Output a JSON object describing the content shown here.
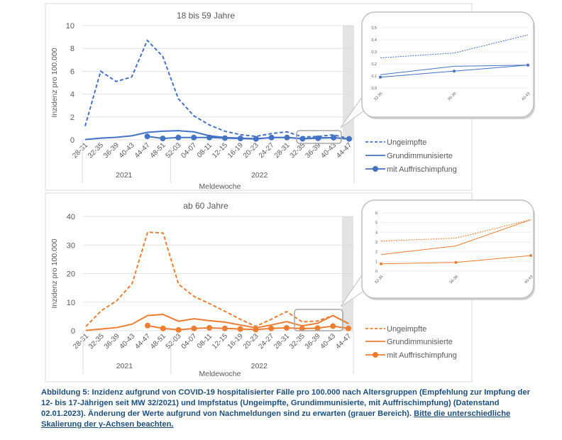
{
  "colors": {
    "blue": "#4472c4",
    "orange": "#ed7d31",
    "grid": "#d9d9d9",
    "axis": "#595959",
    "shade": "#e3e3e3"
  },
  "chart_data": [
    {
      "type": "line",
      "title": "18 bis 59 Jahre",
      "ylabel": "Inzidenz pro 100.000",
      "xlabel": "Meldewoche",
      "ylim": [
        0,
        10
      ],
      "yticks": [
        0,
        2,
        4,
        6,
        8,
        10
      ],
      "categories": [
        "28-31",
        "32-35",
        "36-39",
        "40-43",
        "44-47",
        "48-51",
        "52-03",
        "04-07",
        "08-11",
        "12-15",
        "16-19",
        "20-23",
        "24-27",
        "28-31",
        "32-35",
        "36-39",
        "40-43",
        "44-47"
      ],
      "years": [
        {
          "label": "2021",
          "from": 0,
          "to": 5
        },
        {
          "label": "2022",
          "from": 6,
          "to": 17
        }
      ],
      "series": [
        {
          "name": "Ungeimpfte",
          "style": "dashed",
          "values": [
            1.2,
            6.0,
            5.1,
            5.5,
            8.7,
            7.3,
            3.6,
            2.1,
            1.3,
            0.75,
            0.45,
            0.3,
            0.55,
            0.7,
            0.25,
            0.29,
            0.44,
            0.1
          ]
        },
        {
          "name": "Grundimmunisierte",
          "style": "solid",
          "values": [
            0.02,
            0.15,
            0.22,
            0.35,
            0.65,
            0.75,
            0.8,
            0.7,
            0.35,
            0.2,
            0.15,
            0.1,
            0.2,
            0.2,
            0.11,
            0.18,
            0.19,
            0.08
          ]
        },
        {
          "name": "mit Auffrischimpfung",
          "style": "marker",
          "values": [
            null,
            null,
            null,
            null,
            0.3,
            0.12,
            0.2,
            0.2,
            0.2,
            0.15,
            0.12,
            0.08,
            0.2,
            0.2,
            0.09,
            0.14,
            0.19,
            0.08
          ]
        }
      ],
      "inset": {
        "categories": [
          "32-35",
          "36-39",
          "40-43"
        ],
        "ylim": [
          0,
          0.5
        ],
        "yticks": [
          "0,0",
          "0,1",
          "0,2",
          "0,3",
          "0,4",
          "0,5"
        ],
        "series": [
          {
            "name": "Ungeimpfte",
            "values": [
              0.25,
              0.29,
              0.44
            ]
          },
          {
            "name": "Grundimmunisierte",
            "values": [
              0.11,
              0.18,
              0.19
            ]
          },
          {
            "name": "mit Auffrischimpfung",
            "values": [
              0.09,
              0.14,
              0.19
            ]
          }
        ]
      }
    },
    {
      "type": "line",
      "title": "ab 60 Jahre",
      "ylabel": "Inzidenz pro 100.000",
      "xlabel": "Meldewoche",
      "ylim": [
        0,
        40
      ],
      "yticks": [
        0,
        10,
        20,
        30,
        40
      ],
      "categories": [
        "28-31",
        "32-35",
        "36-39",
        "40-43",
        "44-47",
        "48-51",
        "52-03",
        "04-07",
        "08-11",
        "12-15",
        "16-19",
        "20-23",
        "24-27",
        "28-31",
        "32-35",
        "36-39",
        "40-43",
        "44-47"
      ],
      "years": [
        {
          "label": "2021",
          "from": 0,
          "to": 5
        },
        {
          "label": "2022",
          "from": 6,
          "to": 17
        }
      ],
      "series": [
        {
          "name": "Ungeimpfte",
          "style": "dashed",
          "values": [
            1.5,
            7,
            10.5,
            16.5,
            34.5,
            34.2,
            16.3,
            12,
            9.5,
            6.8,
            4,
            1.5,
            4,
            6.7,
            3.1,
            3.4,
            5.3,
            2.5
          ]
        },
        {
          "name": "Grundimmunisierte",
          "style": "solid",
          "values": [
            0.1,
            0.6,
            1.1,
            2.3,
            5.3,
            5.7,
            3.3,
            4.2,
            3.5,
            3,
            2,
            1,
            2,
            3.2,
            1.7,
            2.6,
            5.3,
            2.5
          ]
        },
        {
          "name": "mit Auffrischimpfung",
          "style": "marker",
          "values": [
            null,
            null,
            null,
            null,
            1.8,
            0.8,
            0.3,
            0.8,
            1.0,
            0.8,
            0.6,
            0.4,
            0.8,
            1.0,
            0.75,
            0.9,
            1.6,
            0.8
          ]
        }
      ],
      "inset": {
        "categories": [
          "32-35",
          "36-39",
          "40-43"
        ],
        "ylim": [
          0,
          6
        ],
        "yticks": [
          "0",
          "1",
          "2",
          "3",
          "4",
          "5",
          "6"
        ],
        "series": [
          {
            "name": "Ungeimpfte",
            "values": [
              3.1,
              3.4,
              5.3
            ]
          },
          {
            "name": "Grundimmunisierte",
            "values": [
              1.7,
              2.6,
              5.3
            ]
          },
          {
            "name": "mit Auffrischimpfung",
            "values": [
              0.75,
              0.9,
              1.6
            ]
          }
        ]
      }
    }
  ],
  "caption": {
    "part1": "Abbildung 5: Inzidenz aufgrund von COVID-19 hospitalisierter Fälle pro 100.000 nach Altersgruppen (Empfehlung zur Impfung der 12- bis 17-Jährigen seit MW 32/2021) und Impfstatus (Ungeimpfte, Grundimmunisierte, mit Auffrischimpfung) (Datenstand 02.01.2023). Änderung der Werte aufgrund von Nachmeldungen sind zu erwarten (grauer Bereich). ",
    "part2": "Bitte die unterschiedliche Skalierung der y-Achsen beachten."
  }
}
